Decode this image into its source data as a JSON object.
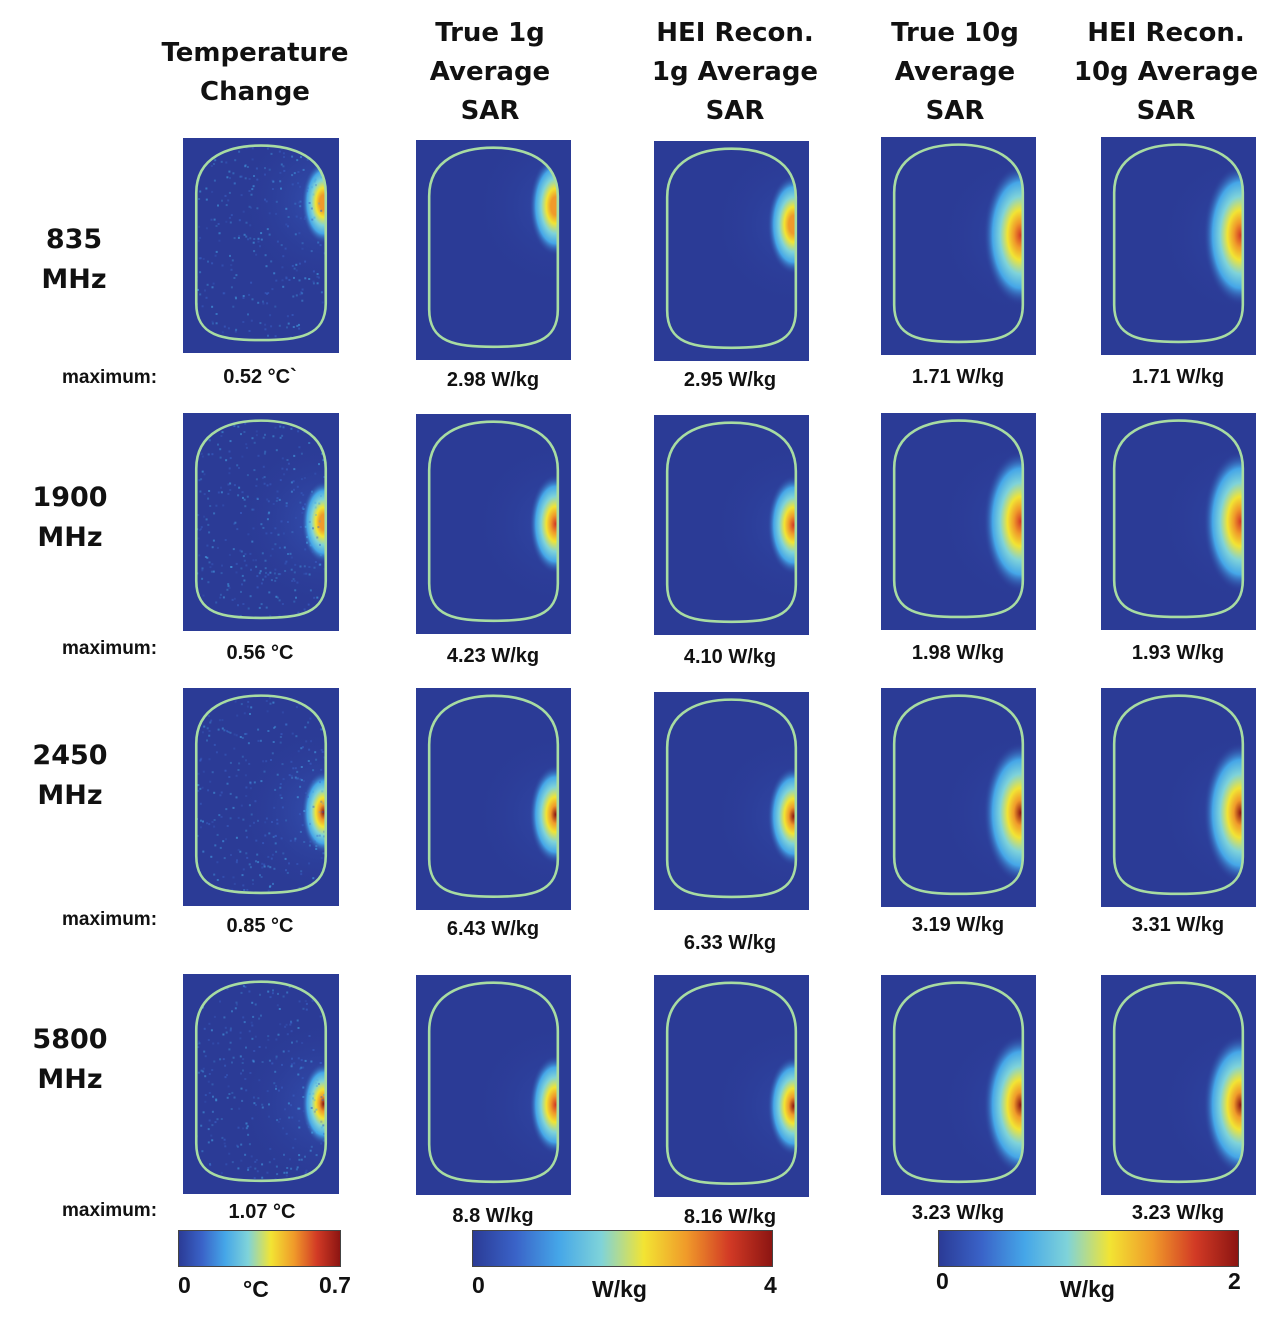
{
  "column_headers": [
    {
      "lines": [
        "Temperature",
        "Change"
      ]
    },
    {
      "lines": [
        "True 1g",
        "Average",
        "SAR"
      ]
    },
    {
      "lines": [
        "HEI Recon.",
        "1g Average",
        "SAR"
      ]
    },
    {
      "lines": [
        "True 10g",
        "Average",
        "SAR"
      ]
    },
    {
      "lines": [
        "HEI Recon.",
        "10g Average",
        "SAR"
      ]
    }
  ],
  "maximum_label": "maximum:",
  "rows": [
    {
      "freq": [
        "835",
        "MHz"
      ],
      "values": [
        "0.52 °C`",
        "2.98 W/kg",
        "2.95 W/kg",
        "1.71 W/kg",
        "1.71 W/kg"
      ],
      "hotspot_rel_height": [
        0.3,
        0.3,
        0.38,
        0.45,
        0.45
      ],
      "hotspot_intensity": [
        0.74,
        0.72,
        0.71,
        0.86,
        0.86
      ]
    },
    {
      "freq": [
        "1900",
        "MHz"
      ],
      "values": [
        "0.56 °C",
        "4.23 W/kg",
        "4.10 W/kg",
        "1.98 W/kg",
        "1.93 W/kg"
      ],
      "hotspot_rel_height": [
        0.5,
        0.5,
        0.5,
        0.5,
        0.5
      ],
      "hotspot_intensity": [
        0.8,
        0.85,
        0.85,
        0.9,
        0.9
      ]
    },
    {
      "freq": [
        "2450",
        "MHz"
      ],
      "values": [
        "0.85 °C",
        "6.43 W/kg",
        "6.33 W/kg",
        "3.19 W/kg",
        "3.31 W/kg"
      ],
      "hotspot_rel_height": [
        0.57,
        0.57,
        0.57,
        0.57,
        0.57
      ],
      "hotspot_intensity": [
        1.0,
        1.0,
        1.0,
        1.0,
        1.0
      ]
    },
    {
      "freq": [
        "5800",
        "MHz"
      ],
      "values": [
        "1.07  °C",
        "8.8 W/kg",
        "8.16 W/kg",
        "3.23 W/kg",
        "3.23 W/kg"
      ],
      "hotspot_rel_height": [
        0.59,
        0.59,
        0.59,
        0.59,
        0.59
      ],
      "hotspot_intensity": [
        1.0,
        0.9,
        1.0,
        1.0,
        1.0
      ]
    }
  ],
  "colorbars": [
    {
      "min": "0",
      "max": "0.7",
      "unit": "°C"
    },
    {
      "min": "0",
      "max": "4",
      "unit": "W/kg"
    },
    {
      "min": "0",
      "max": "2",
      "unit": "W/kg"
    }
  ],
  "colors": {
    "background": "#2b3b96",
    "outline": "#a8dca2",
    "colormap": [
      "#2b3b96",
      "#3a63c8",
      "#45a6e8",
      "#7fd3d9",
      "#f2e433",
      "#f09a2a",
      "#d23a25",
      "#8c1512"
    ]
  }
}
